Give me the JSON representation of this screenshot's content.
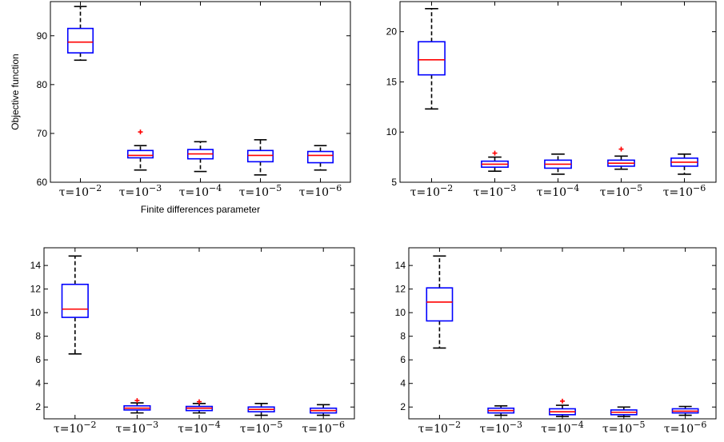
{
  "chart_data": [
    {
      "type": "boxplot",
      "ylabel": "Objective function",
      "xlabel": "Finite differences parameter",
      "ylim": [
        60,
        97
      ],
      "yticks": [
        60,
        70,
        80,
        90
      ],
      "categories": [
        "τ=10^-2",
        "τ=10^-3",
        "τ=10^-4",
        "τ=10^-5",
        "τ=10^-6"
      ],
      "boxes": [
        {
          "whisker_low": 85,
          "q1": 86.5,
          "median": 88.7,
          "q3": 91.5,
          "whisker_high": 96,
          "outliers": []
        },
        {
          "whisker_low": 62.5,
          "q1": 65,
          "median": 65.5,
          "q3": 66.5,
          "whisker_high": 67.5,
          "outliers": [
            70.3
          ]
        },
        {
          "whisker_low": 62.2,
          "q1": 64.8,
          "median": 65.8,
          "q3": 66.7,
          "whisker_high": 68.3,
          "outliers": []
        },
        {
          "whisker_low": 61.5,
          "q1": 64.2,
          "median": 65.5,
          "q3": 66.5,
          "whisker_high": 68.7,
          "outliers": []
        },
        {
          "whisker_low": 62.5,
          "q1": 64,
          "median": 65.5,
          "q3": 66.3,
          "whisker_high": 67.5,
          "outliers": []
        }
      ]
    },
    {
      "type": "boxplot",
      "ylabel": "",
      "xlabel": "",
      "ylim": [
        5,
        23
      ],
      "yticks": [
        5,
        10,
        15,
        20
      ],
      "categories": [
        "τ=10^-2",
        "τ=10^-3",
        "τ=10^-4",
        "τ=10^-5",
        "τ=10^-6"
      ],
      "boxes": [
        {
          "whisker_low": 12.3,
          "q1": 15.7,
          "median": 17.2,
          "q3": 19,
          "whisker_high": 22.3,
          "outliers": []
        },
        {
          "whisker_low": 6.1,
          "q1": 6.5,
          "median": 6.8,
          "q3": 7.1,
          "whisker_high": 7.5,
          "outliers": [
            7.9
          ]
        },
        {
          "whisker_low": 5.8,
          "q1": 6.4,
          "median": 6.8,
          "q3": 7.2,
          "whisker_high": 7.8,
          "outliers": []
        },
        {
          "whisker_low": 6.3,
          "q1": 6.6,
          "median": 6.9,
          "q3": 7.2,
          "whisker_high": 7.6,
          "outliers": [
            8.3
          ]
        },
        {
          "whisker_low": 5.8,
          "q1": 6.6,
          "median": 7,
          "q3": 7.4,
          "whisker_high": 7.8,
          "outliers": []
        }
      ]
    },
    {
      "type": "boxplot",
      "ylabel": "",
      "xlabel": "",
      "ylim": [
        1,
        15.5
      ],
      "yticks": [
        2,
        4,
        6,
        8,
        10,
        12,
        14
      ],
      "categories": [
        "τ=10^-2",
        "τ=10^-3",
        "τ=10^-4",
        "τ=10^-5",
        "τ=10^-6"
      ],
      "boxes": [
        {
          "whisker_low": 6.5,
          "q1": 9.6,
          "median": 10.3,
          "q3": 12.4,
          "whisker_high": 14.8,
          "outliers": []
        },
        {
          "whisker_low": 1.5,
          "q1": 1.75,
          "median": 1.9,
          "q3": 2.1,
          "whisker_high": 2.35,
          "outliers": [
            2.55
          ]
        },
        {
          "whisker_low": 1.5,
          "q1": 1.7,
          "median": 1.9,
          "q3": 2.05,
          "whisker_high": 2.3,
          "outliers": [
            2.45
          ]
        },
        {
          "whisker_low": 1.3,
          "q1": 1.6,
          "median": 1.8,
          "q3": 2.0,
          "whisker_high": 2.3,
          "outliers": []
        },
        {
          "whisker_low": 1.3,
          "q1": 1.5,
          "median": 1.7,
          "q3": 1.9,
          "whisker_high": 2.2,
          "outliers": []
        }
      ]
    },
    {
      "type": "boxplot",
      "ylabel": "",
      "xlabel": "",
      "ylim": [
        1,
        15.5
      ],
      "yticks": [
        2,
        4,
        6,
        8,
        10,
        12,
        14
      ],
      "categories": [
        "τ=10^-2",
        "τ=10^-3",
        "τ=10^-4",
        "τ=10^-5",
        "τ=10^-6"
      ],
      "boxes": [
        {
          "whisker_low": 7,
          "q1": 9.3,
          "median": 10.9,
          "q3": 12.1,
          "whisker_high": 14.8,
          "outliers": []
        },
        {
          "whisker_low": 1.3,
          "q1": 1.5,
          "median": 1.7,
          "q3": 1.9,
          "whisker_high": 2.1,
          "outliers": []
        },
        {
          "whisker_low": 1.2,
          "q1": 1.35,
          "median": 1.6,
          "q3": 1.85,
          "whisker_high": 2.15,
          "outliers": [
            2.5
          ]
        },
        {
          "whisker_low": 1.2,
          "q1": 1.35,
          "median": 1.55,
          "q3": 1.75,
          "whisker_high": 2.0,
          "outliers": []
        },
        {
          "whisker_low": 1.3,
          "q1": 1.5,
          "median": 1.65,
          "q3": 1.85,
          "whisker_high": 2.05,
          "outliers": []
        }
      ]
    }
  ],
  "colors": {
    "box": "#0000ff",
    "median": "#ff0000",
    "whisker": "#000000",
    "outlier": "#ff0000"
  }
}
